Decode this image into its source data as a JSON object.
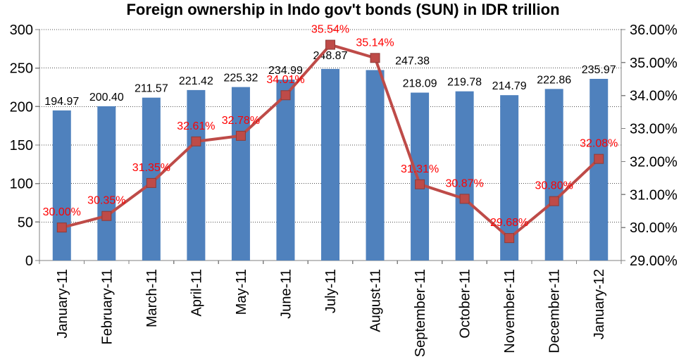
{
  "chart_data": {
    "type": "bar",
    "title": "Foreign ownership in Indo gov't bonds (SUN) in IDR trillion",
    "categories": [
      "January-11",
      "February-11",
      "March-11",
      "April-11",
      "May-11",
      "June-11",
      "July-11",
      "August-11",
      "September-11",
      "October-11",
      "November-11",
      "December-11",
      "January-12"
    ],
    "series": [
      {
        "id": "ownership-idr-trillion-bars",
        "type": "bar",
        "axis": "left",
        "values": [
          194.97,
          200.4,
          211.57,
          221.42,
          225.32,
          234.99,
          248.87,
          247.38,
          218.09,
          219.78,
          214.79,
          222.86,
          235.97
        ],
        "labels": [
          "194.97",
          "200.40",
          "211.57",
          "221.42",
          "225.32",
          "234.99",
          "248.87",
          "247.38",
          "218.09",
          "219.78",
          "214.79",
          "222.86",
          "235.97"
        ],
        "label_dx": [
          0,
          0,
          0,
          0,
          0,
          0,
          0,
          53,
          0,
          0,
          0,
          0,
          0
        ],
        "label_dy": [
          0,
          0,
          0,
          0,
          0,
          0,
          -6,
          0,
          0,
          0,
          0,
          0,
          0
        ]
      },
      {
        "id": "ownership-percent-line",
        "type": "line",
        "axis": "right",
        "values": [
          30.0,
          30.35,
          31.35,
          32.61,
          32.78,
          34.01,
          35.54,
          35.14,
          31.31,
          30.87,
          29.68,
          30.8,
          32.08
        ],
        "labels": [
          "30.00%",
          "30.35%",
          "31.35%",
          "32.61%",
          "32.78%",
          "34.01%",
          "35.54%",
          "35.14%",
          "31.31%",
          "30.87%",
          "29.68%",
          "30.80%",
          "32.08%"
        ]
      }
    ],
    "left_axis": {
      "min": 0,
      "max": 300,
      "step": 50,
      "ticks": [
        "300",
        "250",
        "200",
        "150",
        "100",
        "50",
        "0"
      ]
    },
    "right_axis": {
      "min": 29,
      "max": 36,
      "step": 1,
      "ticks": [
        "36.00%",
        "35.00%",
        "34.00%",
        "33.00%",
        "32.00%",
        "31.00%",
        "30.00%",
        "29.00%"
      ]
    },
    "legend": "none",
    "grid": "horizontal-dotted-at-left-axis-steps",
    "style": {
      "bar_color": "#4F81BD",
      "line_color": "#BE4B48",
      "marker_border_color": "#8E3B38",
      "value_label_color": "#000000",
      "percent_label_color": "#FF0000",
      "axis_color": "#808080",
      "grid_color": "#4D4D4D",
      "background": "#FFFFFF",
      "title_color": "#000000"
    }
  }
}
